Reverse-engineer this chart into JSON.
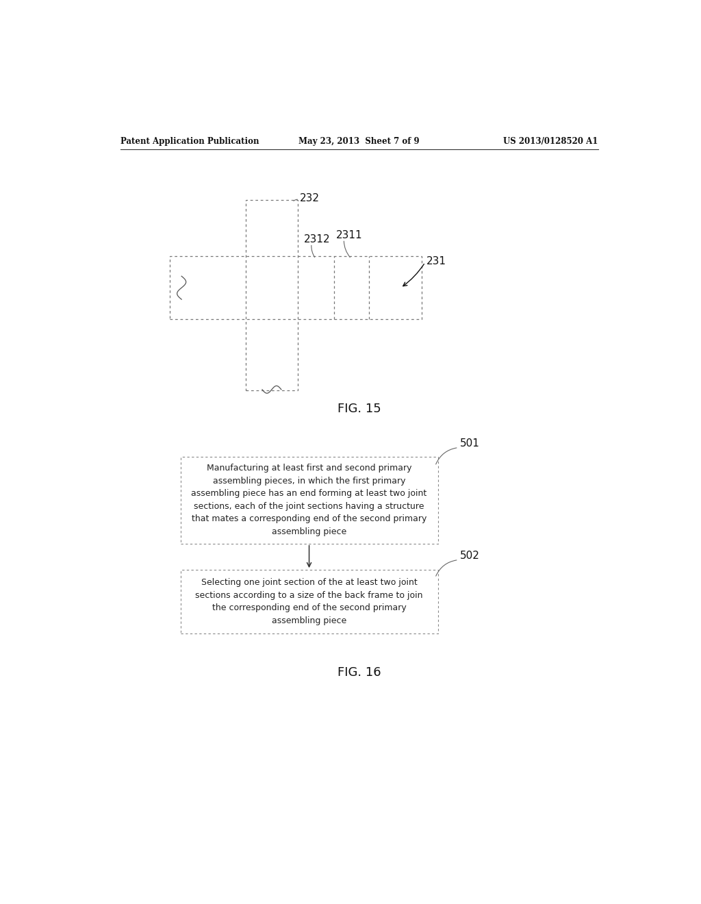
{
  "bg_color": "#ffffff",
  "header_left": "Patent Application Publication",
  "header_center": "May 23, 2013  Sheet 7 of 9",
  "header_right": "US 2013/0128520 A1",
  "label_232": "232",
  "label_2312": "2312",
  "label_2311": "2311",
  "label_231": "231",
  "label_501": "501",
  "label_502": "502",
  "fig15_label": "FIG. 15",
  "fig16_label": "FIG. 16",
  "box1_text": "Manufacturing at least first and second primary\nassembling pieces, in which the first primary\nassembling piece has an end forming at least two joint\nsections, each of the joint sections having a structure\nthat mates a corresponding end of the second primary\nassembling piece",
  "box2_text": "Selecting one joint section of the at least two joint\nsections according to a size of the back frame to join\nthe corresponding end of the second primary\nassembling piece"
}
